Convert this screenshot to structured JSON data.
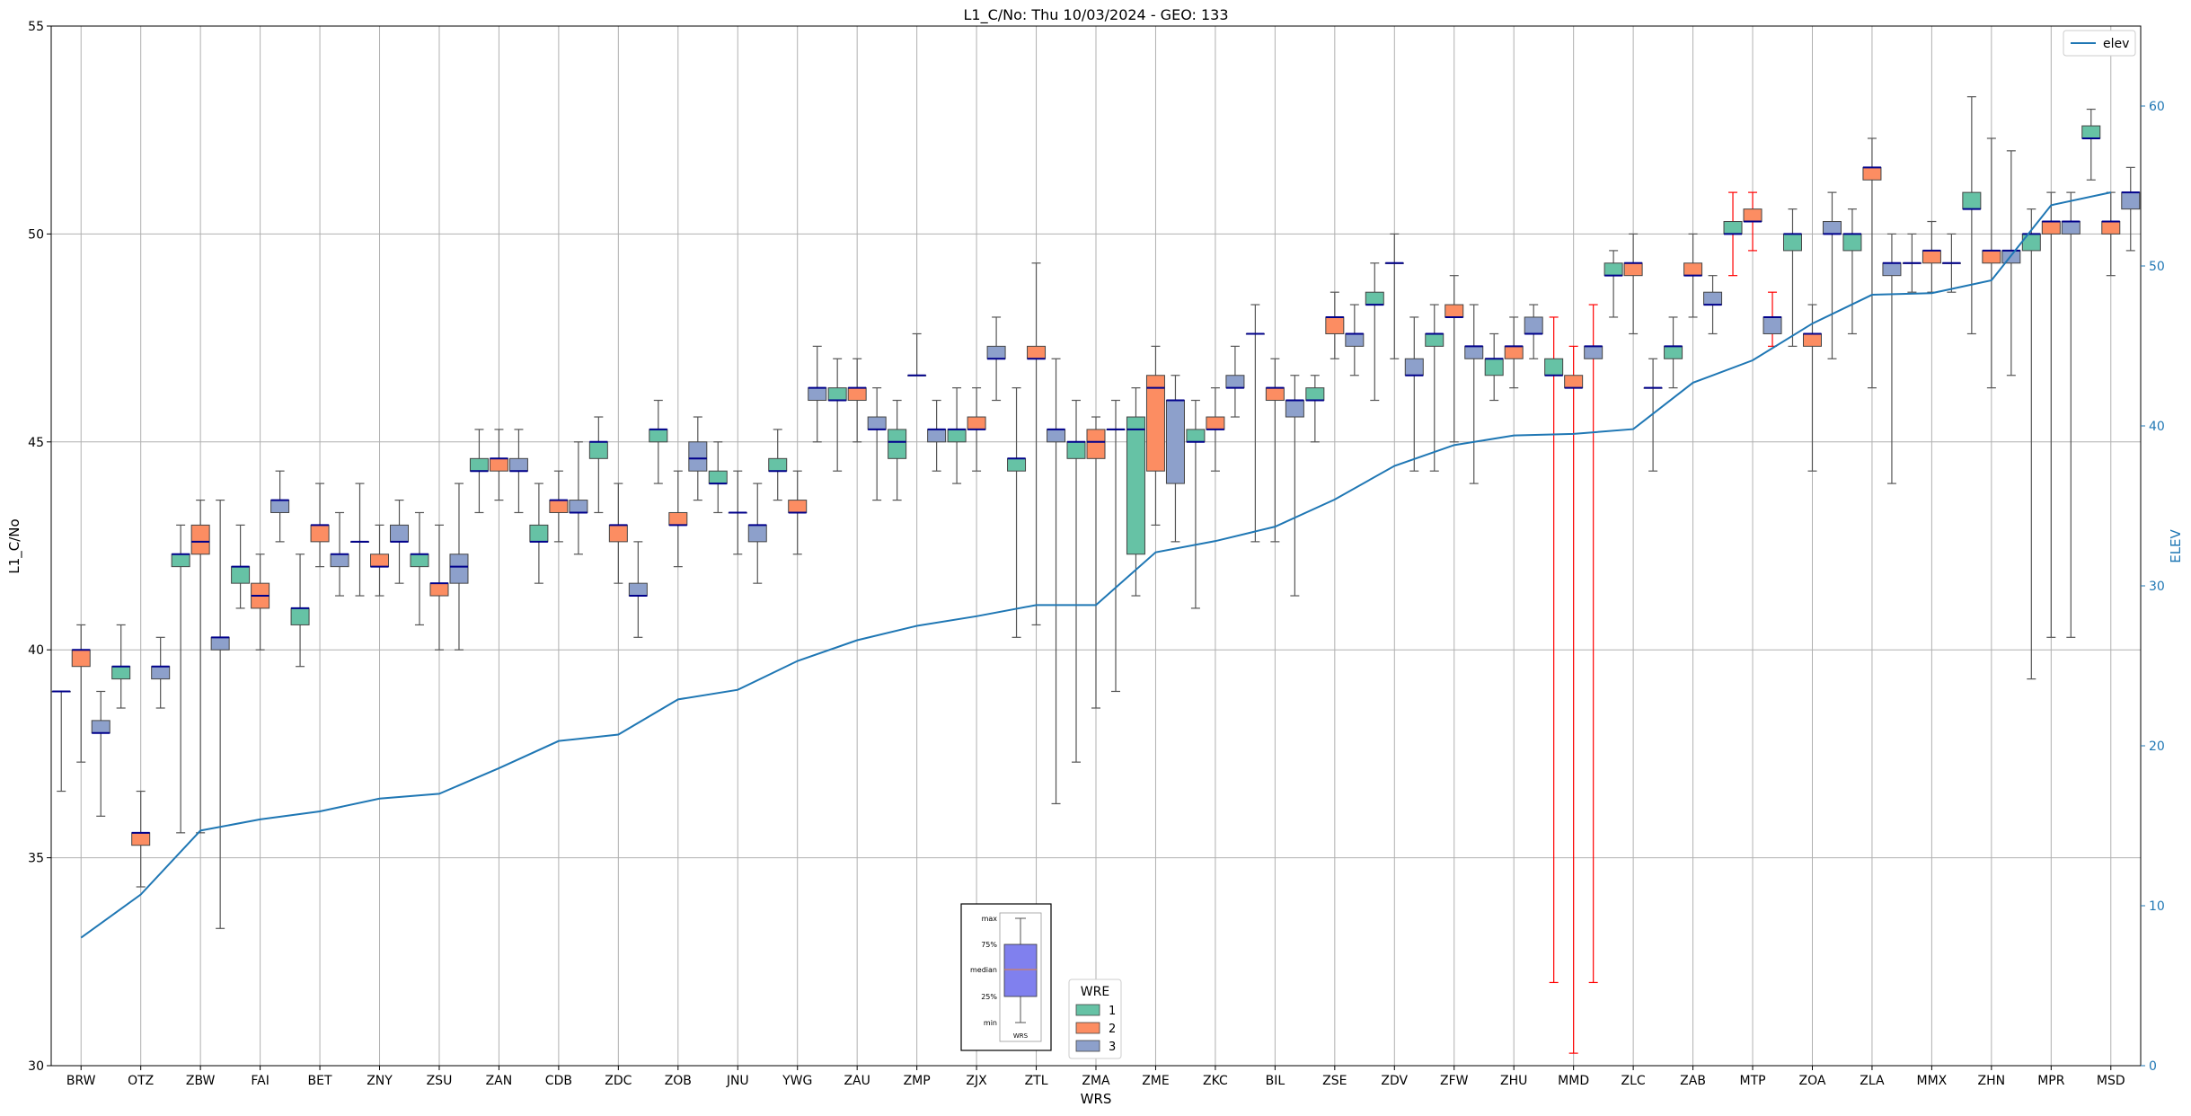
{
  "chart_data": {
    "type": "box",
    "title": "L1_C/No: Thu 10/03/2024 - GEO: 133",
    "xlabel": "WRS",
    "ylabel": "L1_C/No",
    "y2label": "ELEV",
    "ylim": [
      30,
      55
    ],
    "y2lim": [
      0,
      65
    ],
    "yticks": [
      30,
      35,
      40,
      45,
      50,
      55
    ],
    "y2ticks": [
      0,
      10,
      20,
      30,
      40,
      50,
      60
    ],
    "grid": true,
    "categories": [
      "BRW",
      "OTZ",
      "ZBW",
      "FAI",
      "BET",
      "ZNY",
      "ZSU",
      "ZAN",
      "CDB",
      "ZDC",
      "ZOB",
      "JNU",
      "YWG",
      "ZAU",
      "ZMP",
      "ZJX",
      "ZTL",
      "ZMA",
      "ZME",
      "ZKC",
      "BIL",
      "ZSE",
      "ZDV",
      "ZFW",
      "ZHU",
      "MMD",
      "ZLC",
      "ZAB",
      "MTP",
      "ZOA",
      "ZLA",
      "MMX",
      "ZHN",
      "MPR",
      "MSD"
    ],
    "wre_colors": {
      "1": "#66c2a5",
      "2": "#fc8d62",
      "3": "#8da0cb"
    },
    "median_color": "#00008b",
    "whisker_color": "#555555",
    "outlier_whisker_color": "#ff0000",
    "boxes": [
      {
        "site": "BRW",
        "wre": 1,
        "min": 36.6,
        "q1": 39.0,
        "median": 39.0,
        "q3": 39.0,
        "max": 39.0
      },
      {
        "site": "BRW",
        "wre": 2,
        "min": 37.3,
        "q1": 39.6,
        "median": 40.0,
        "q3": 40.0,
        "max": 40.6
      },
      {
        "site": "BRW",
        "wre": 3,
        "min": 36.0,
        "q1": 38.0,
        "median": 38.0,
        "q3": 38.3,
        "max": 39.0
      },
      {
        "site": "OTZ",
        "wre": 1,
        "min": 38.6,
        "q1": 39.3,
        "median": 39.6,
        "q3": 39.6,
        "max": 40.6
      },
      {
        "site": "OTZ",
        "wre": 2,
        "min": 34.3,
        "q1": 35.3,
        "median": 35.6,
        "q3": 35.6,
        "max": 36.6
      },
      {
        "site": "OTZ",
        "wre": 3,
        "min": 38.6,
        "q1": 39.3,
        "median": 39.6,
        "q3": 39.6,
        "max": 40.3
      },
      {
        "site": "ZBW",
        "wre": 1,
        "min": 35.6,
        "q1": 42.0,
        "median": 42.3,
        "q3": 42.3,
        "max": 43.0
      },
      {
        "site": "ZBW",
        "wre": 2,
        "min": 35.6,
        "q1": 42.3,
        "median": 42.6,
        "q3": 43.0,
        "max": 43.6
      },
      {
        "site": "ZBW",
        "wre": 3,
        "min": 33.3,
        "q1": 40.0,
        "median": 40.3,
        "q3": 40.3,
        "max": 43.6
      },
      {
        "site": "FAI",
        "wre": 1,
        "min": 41.0,
        "q1": 41.6,
        "median": 42.0,
        "q3": 42.0,
        "max": 43.0
      },
      {
        "site": "FAI",
        "wre": 2,
        "min": 40.0,
        "q1": 41.0,
        "median": 41.3,
        "q3": 41.6,
        "max": 42.3
      },
      {
        "site": "FAI",
        "wre": 3,
        "min": 42.6,
        "q1": 43.3,
        "median": 43.6,
        "q3": 43.6,
        "max": 44.3
      },
      {
        "site": "BET",
        "wre": 1,
        "min": 39.6,
        "q1": 40.6,
        "median": 41.0,
        "q3": 41.0,
        "max": 42.3
      },
      {
        "site": "BET",
        "wre": 2,
        "min": 42.0,
        "q1": 42.6,
        "median": 43.0,
        "q3": 43.0,
        "max": 44.0
      },
      {
        "site": "BET",
        "wre": 3,
        "min": 41.3,
        "q1": 42.0,
        "median": 42.3,
        "q3": 42.3,
        "max": 43.3
      },
      {
        "site": "ZNY",
        "wre": 1,
        "min": 41.3,
        "q1": 42.6,
        "median": 42.6,
        "q3": 42.6,
        "max": 44.0
      },
      {
        "site": "ZNY",
        "wre": 2,
        "min": 41.3,
        "q1": 42.0,
        "median": 42.0,
        "q3": 42.3,
        "max": 43.0
      },
      {
        "site": "ZNY",
        "wre": 3,
        "min": 41.6,
        "q1": 42.6,
        "median": 42.6,
        "q3": 43.0,
        "max": 43.6
      },
      {
        "site": "ZSU",
        "wre": 1,
        "min": 40.6,
        "q1": 42.0,
        "median": 42.3,
        "q3": 42.3,
        "max": 43.3
      },
      {
        "site": "ZSU",
        "wre": 2,
        "min": 40.0,
        "q1": 41.3,
        "median": 41.6,
        "q3": 41.6,
        "max": 43.0
      },
      {
        "site": "ZSU",
        "wre": 3,
        "min": 40.0,
        "q1": 41.6,
        "median": 42.0,
        "q3": 42.3,
        "max": 44.0
      },
      {
        "site": "ZAN",
        "wre": 1,
        "min": 43.3,
        "q1": 44.3,
        "median": 44.3,
        "q3": 44.6,
        "max": 45.3
      },
      {
        "site": "ZAN",
        "wre": 2,
        "min": 43.6,
        "q1": 44.3,
        "median": 44.6,
        "q3": 44.6,
        "max": 45.3
      },
      {
        "site": "ZAN",
        "wre": 3,
        "min": 43.3,
        "q1": 44.3,
        "median": 44.3,
        "q3": 44.6,
        "max": 45.3
      },
      {
        "site": "CDB",
        "wre": 1,
        "min": 41.6,
        "q1": 42.6,
        "median": 42.6,
        "q3": 43.0,
        "max": 44.0
      },
      {
        "site": "CDB",
        "wre": 2,
        "min": 42.6,
        "q1": 43.3,
        "median": 43.6,
        "q3": 43.6,
        "max": 44.3
      },
      {
        "site": "CDB",
        "wre": 3,
        "min": 42.3,
        "q1": 43.3,
        "median": 43.3,
        "q3": 43.6,
        "max": 45.0
      },
      {
        "site": "ZDC",
        "wre": 1,
        "min": 43.3,
        "q1": 44.6,
        "median": 45.0,
        "q3": 45.0,
        "max": 45.6
      },
      {
        "site": "ZDC",
        "wre": 2,
        "min": 41.6,
        "q1": 42.6,
        "median": 43.0,
        "q3": 43.0,
        "max": 44.0
      },
      {
        "site": "ZDC",
        "wre": 3,
        "min": 40.3,
        "q1": 41.3,
        "median": 41.3,
        "q3": 41.6,
        "max": 42.6
      },
      {
        "site": "ZOB",
        "wre": 1,
        "min": 44.0,
        "q1": 45.0,
        "median": 45.3,
        "q3": 45.3,
        "max": 46.0
      },
      {
        "site": "ZOB",
        "wre": 2,
        "min": 42.0,
        "q1": 43.0,
        "median": 43.0,
        "q3": 43.3,
        "max": 44.3
      },
      {
        "site": "ZOB",
        "wre": 3,
        "min": 43.6,
        "q1": 44.3,
        "median": 44.6,
        "q3": 45.0,
        "max": 45.6
      },
      {
        "site": "JNU",
        "wre": 1,
        "min": 43.3,
        "q1": 44.0,
        "median": 44.0,
        "q3": 44.3,
        "max": 45.0
      },
      {
        "site": "JNU",
        "wre": 2,
        "min": 42.3,
        "q1": 43.3,
        "median": 43.3,
        "q3": 43.3,
        "max": 44.3
      },
      {
        "site": "JNU",
        "wre": 3,
        "min": 41.6,
        "q1": 42.6,
        "median": 43.0,
        "q3": 43.0,
        "max": 44.0
      },
      {
        "site": "YWG",
        "wre": 1,
        "min": 43.6,
        "q1": 44.3,
        "median": 44.3,
        "q3": 44.6,
        "max": 45.3
      },
      {
        "site": "YWG",
        "wre": 2,
        "min": 42.3,
        "q1": 43.3,
        "median": 43.3,
        "q3": 43.6,
        "max": 44.3
      },
      {
        "site": "YWG",
        "wre": 3,
        "min": 45.0,
        "q1": 46.0,
        "median": 46.3,
        "q3": 46.3,
        "max": 47.3
      },
      {
        "site": "ZAU",
        "wre": 1,
        "min": 44.3,
        "q1": 46.0,
        "median": 46.0,
        "q3": 46.3,
        "max": 47.0
      },
      {
        "site": "ZAU",
        "wre": 2,
        "min": 45.0,
        "q1": 46.0,
        "median": 46.3,
        "q3": 46.3,
        "max": 47.0
      },
      {
        "site": "ZAU",
        "wre": 3,
        "min": 43.6,
        "q1": 45.3,
        "median": 45.3,
        "q3": 45.6,
        "max": 46.3
      },
      {
        "site": "ZMP",
        "wre": 1,
        "min": 43.6,
        "q1": 44.6,
        "median": 45.0,
        "q3": 45.3,
        "max": 46.0
      },
      {
        "site": "ZMP",
        "wre": 2,
        "min": 46.6,
        "q1": 46.6,
        "median": 46.6,
        "q3": 46.6,
        "max": 47.6
      },
      {
        "site": "ZMP",
        "wre": 3,
        "min": 44.3,
        "q1": 45.0,
        "median": 45.3,
        "q3": 45.3,
        "max": 46.0
      },
      {
        "site": "ZJX",
        "wre": 1,
        "min": 44.0,
        "q1": 45.0,
        "median": 45.3,
        "q3": 45.3,
        "max": 46.3
      },
      {
        "site": "ZJX",
        "wre": 2,
        "min": 44.3,
        "q1": 45.3,
        "median": 45.3,
        "q3": 45.6,
        "max": 46.3
      },
      {
        "site": "ZJX",
        "wre": 3,
        "min": 46.0,
        "q1": 47.0,
        "median": 47.0,
        "q3": 47.3,
        "max": 48.0
      },
      {
        "site": "ZTL",
        "wre": 1,
        "min": 40.3,
        "q1": 44.3,
        "median": 44.6,
        "q3": 44.6,
        "max": 46.3
      },
      {
        "site": "ZTL",
        "wre": 2,
        "min": 40.6,
        "q1": 47.0,
        "median": 47.0,
        "q3": 47.3,
        "max": 49.3
      },
      {
        "site": "ZTL",
        "wre": 3,
        "min": 36.3,
        "q1": 45.0,
        "median": 45.3,
        "q3": 45.3,
        "max": 47.0
      },
      {
        "site": "ZMA",
        "wre": 1,
        "min": 37.3,
        "q1": 44.6,
        "median": 45.0,
        "q3": 45.0,
        "max": 46.0
      },
      {
        "site": "ZMA",
        "wre": 2,
        "min": 38.6,
        "q1": 44.6,
        "median": 45.0,
        "q3": 45.3,
        "max": 45.6
      },
      {
        "site": "ZMA",
        "wre": 3,
        "min": 39.0,
        "q1": 45.3,
        "median": 45.3,
        "q3": 45.3,
        "max": 46.0
      },
      {
        "site": "ZME",
        "wre": 1,
        "min": 41.3,
        "q1": 42.3,
        "median": 45.3,
        "q3": 45.6,
        "max": 46.3
      },
      {
        "site": "ZME",
        "wre": 2,
        "min": 43.0,
        "q1": 44.3,
        "median": 46.3,
        "q3": 46.6,
        "max": 47.3
      },
      {
        "site": "ZME",
        "wre": 3,
        "min": 42.6,
        "q1": 44.0,
        "median": 46.0,
        "q3": 46.0,
        "max": 46.6
      },
      {
        "site": "ZKC",
        "wre": 1,
        "min": 41.0,
        "q1": 45.0,
        "median": 45.0,
        "q3": 45.3,
        "max": 46.0
      },
      {
        "site": "ZKC",
        "wre": 2,
        "min": 44.3,
        "q1": 45.3,
        "median": 45.3,
        "q3": 45.6,
        "max": 46.3
      },
      {
        "site": "ZKC",
        "wre": 3,
        "min": 45.6,
        "q1": 46.3,
        "median": 46.3,
        "q3": 46.6,
        "max": 47.3
      },
      {
        "site": "BIL",
        "wre": 1,
        "min": 42.6,
        "q1": 47.6,
        "median": 47.6,
        "q3": 47.6,
        "max": 48.3
      },
      {
        "site": "BIL",
        "wre": 2,
        "min": 42.6,
        "q1": 46.0,
        "median": 46.3,
        "q3": 46.3,
        "max": 47.0
      },
      {
        "site": "BIL",
        "wre": 3,
        "min": 41.3,
        "q1": 45.6,
        "median": 46.0,
        "q3": 46.0,
        "max": 46.6
      },
      {
        "site": "ZSE",
        "wre": 1,
        "min": 45.0,
        "q1": 46.0,
        "median": 46.0,
        "q3": 46.3,
        "max": 46.6
      },
      {
        "site": "ZSE",
        "wre": 2,
        "min": 47.0,
        "q1": 47.6,
        "median": 48.0,
        "q3": 48.0,
        "max": 48.6
      },
      {
        "site": "ZSE",
        "wre": 3,
        "min": 46.6,
        "q1": 47.3,
        "median": 47.6,
        "q3": 47.6,
        "max": 48.3
      },
      {
        "site": "ZDV",
        "wre": 1,
        "min": 46.0,
        "q1": 48.3,
        "median": 48.3,
        "q3": 48.6,
        "max": 49.3
      },
      {
        "site": "ZDV",
        "wre": 2,
        "min": 47.0,
        "q1": 49.3,
        "median": 49.3,
        "q3": 49.3,
        "max": 50.0
      },
      {
        "site": "ZDV",
        "wre": 3,
        "min": 44.3,
        "q1": 46.6,
        "median": 46.6,
        "q3": 47.0,
        "max": 48.0
      },
      {
        "site": "ZFW",
        "wre": 1,
        "min": 44.3,
        "q1": 47.3,
        "median": 47.6,
        "q3": 47.6,
        "max": 48.3
      },
      {
        "site": "ZFW",
        "wre": 2,
        "min": 45.0,
        "q1": 48.0,
        "median": 48.0,
        "q3": 48.3,
        "max": 49.0
      },
      {
        "site": "ZFW",
        "wre": 3,
        "min": 44.0,
        "q1": 47.0,
        "median": 47.3,
        "q3": 47.3,
        "max": 48.3
      },
      {
        "site": "ZHU",
        "wre": 1,
        "min": 46.0,
        "q1": 46.6,
        "median": 47.0,
        "q3": 47.0,
        "max": 47.6
      },
      {
        "site": "ZHU",
        "wre": 2,
        "min": 46.3,
        "q1": 47.0,
        "median": 47.3,
        "q3": 47.3,
        "max": 48.0
      },
      {
        "site": "ZHU",
        "wre": 3,
        "min": 47.0,
        "q1": 47.6,
        "median": 47.6,
        "q3": 48.0,
        "max": 48.3
      },
      {
        "site": "MMD",
        "wre": 1,
        "min": 32.0,
        "q1": 46.6,
        "median": 46.6,
        "q3": 47.0,
        "max": 48.0,
        "outlier": true
      },
      {
        "site": "MMD",
        "wre": 2,
        "min": 30.3,
        "q1": 46.3,
        "median": 46.3,
        "q3": 46.6,
        "max": 47.3,
        "outlier": true
      },
      {
        "site": "MMD",
        "wre": 3,
        "min": 32.0,
        "q1": 47.0,
        "median": 47.3,
        "q3": 47.3,
        "max": 48.3,
        "outlier": true
      },
      {
        "site": "ZLC",
        "wre": 1,
        "min": 48.0,
        "q1": 49.0,
        "median": 49.0,
        "q3": 49.3,
        "max": 49.6
      },
      {
        "site": "ZLC",
        "wre": 2,
        "min": 47.6,
        "q1": 49.0,
        "median": 49.3,
        "q3": 49.3,
        "max": 50.0
      },
      {
        "site": "ZLC",
        "wre": 3,
        "min": 44.3,
        "q1": 46.3,
        "median": 46.3,
        "q3": 46.3,
        "max": 47.0
      },
      {
        "site": "ZAB",
        "wre": 1,
        "min": 46.3,
        "q1": 47.0,
        "median": 47.3,
        "q3": 47.3,
        "max": 48.0
      },
      {
        "site": "ZAB",
        "wre": 2,
        "min": 48.0,
        "q1": 49.0,
        "median": 49.0,
        "q3": 49.3,
        "max": 50.0
      },
      {
        "site": "ZAB",
        "wre": 3,
        "min": 47.6,
        "q1": 48.3,
        "median": 48.3,
        "q3": 48.6,
        "max": 49.0
      },
      {
        "site": "MTP",
        "wre": 1,
        "min": 49.0,
        "q1": 50.0,
        "median": 50.0,
        "q3": 50.3,
        "max": 51.0,
        "outlier": true
      },
      {
        "site": "MTP",
        "wre": 2,
        "min": 49.6,
        "q1": 50.3,
        "median": 50.3,
        "q3": 50.6,
        "max": 51.0,
        "outlier": true
      },
      {
        "site": "MTP",
        "wre": 3,
        "min": 47.3,
        "q1": 47.6,
        "median": 48.0,
        "q3": 48.0,
        "max": 48.6,
        "outlier": true
      },
      {
        "site": "ZOA",
        "wre": 1,
        "min": 47.3,
        "q1": 49.6,
        "median": 50.0,
        "q3": 50.0,
        "max": 50.6
      },
      {
        "site": "ZOA",
        "wre": 2,
        "min": 44.3,
        "q1": 47.3,
        "median": 47.6,
        "q3": 47.6,
        "max": 48.3
      },
      {
        "site": "ZOA",
        "wre": 3,
        "min": 47.0,
        "q1": 50.0,
        "median": 50.0,
        "q3": 50.3,
        "max": 51.0
      },
      {
        "site": "ZLA",
        "wre": 1,
        "min": 47.6,
        "q1": 49.6,
        "median": 50.0,
        "q3": 50.0,
        "max": 50.6
      },
      {
        "site": "ZLA",
        "wre": 2,
        "min": 46.3,
        "q1": 51.3,
        "median": 51.6,
        "q3": 51.6,
        "max": 52.3
      },
      {
        "site": "ZLA",
        "wre": 3,
        "min": 44.0,
        "q1": 49.0,
        "median": 49.3,
        "q3": 49.3,
        "max": 50.0
      },
      {
        "site": "MMX",
        "wre": 1,
        "min": 48.6,
        "q1": 49.3,
        "median": 49.3,
        "q3": 49.3,
        "max": 50.0
      },
      {
        "site": "MMX",
        "wre": 2,
        "min": 48.6,
        "q1": 49.3,
        "median": 49.6,
        "q3": 49.6,
        "max": 50.3
      },
      {
        "site": "MMX",
        "wre": 3,
        "min": 48.6,
        "q1": 49.3,
        "median": 49.3,
        "q3": 49.3,
        "max": 50.0
      },
      {
        "site": "ZHN",
        "wre": 1,
        "min": 47.6,
        "q1": 50.6,
        "median": 50.6,
        "q3": 51.0,
        "max": 53.3
      },
      {
        "site": "ZHN",
        "wre": 2,
        "min": 46.3,
        "q1": 49.3,
        "median": 49.6,
        "q3": 49.6,
        "max": 52.3
      },
      {
        "site": "ZHN",
        "wre": 3,
        "min": 46.6,
        "q1": 49.3,
        "median": 49.6,
        "q3": 49.6,
        "max": 52.0
      },
      {
        "site": "MPR",
        "wre": 1,
        "min": 39.3,
        "q1": 49.6,
        "median": 50.0,
        "q3": 50.0,
        "max": 50.6
      },
      {
        "site": "MPR",
        "wre": 2,
        "min": 40.3,
        "q1": 50.0,
        "median": 50.3,
        "q3": 50.3,
        "max": 51.0
      },
      {
        "site": "MPR",
        "wre": 3,
        "min": 40.3,
        "q1": 50.0,
        "median": 50.3,
        "q3": 50.3,
        "max": 51.0
      },
      {
        "site": "MSD",
        "wre": 1,
        "min": 51.3,
        "q1": 52.3,
        "median": 52.3,
        "q3": 52.6,
        "max": 53.0
      },
      {
        "site": "MSD",
        "wre": 2,
        "min": 49.0,
        "q1": 50.0,
        "median": 50.3,
        "q3": 50.3,
        "max": 51.0
      },
      {
        "site": "MSD",
        "wre": 3,
        "min": 49.6,
        "q1": 50.6,
        "median": 51.0,
        "q3": 51.0,
        "max": 51.6
      }
    ],
    "elev_series": {
      "name": "elev",
      "axis": "right",
      "color": "#1f77b4",
      "values": [
        8,
        10.7,
        14.7,
        15.4,
        15.9,
        16.7,
        17,
        18.6,
        20.3,
        20.7,
        22.9,
        23.5,
        25.3,
        26.6,
        27.5,
        28.1,
        28.8,
        28.8,
        32.1,
        32.8,
        33.7,
        35.4,
        37.5,
        38.8,
        39.4,
        39.5,
        39.8,
        42.7,
        44.1,
        46.4,
        48.2,
        48.3,
        49.1,
        53.8,
        54.6
      ]
    },
    "legend_elev": {
      "location": "top-right",
      "entries": [
        "elev"
      ]
    },
    "legend_wre": {
      "title": "WRE",
      "location": "bottom-center",
      "entries": [
        "1",
        "2",
        "3"
      ]
    },
    "boxplot_key": {
      "labels": [
        "max",
        "75%",
        "median",
        "25%",
        "min"
      ],
      "xlabel": "WRS"
    }
  }
}
